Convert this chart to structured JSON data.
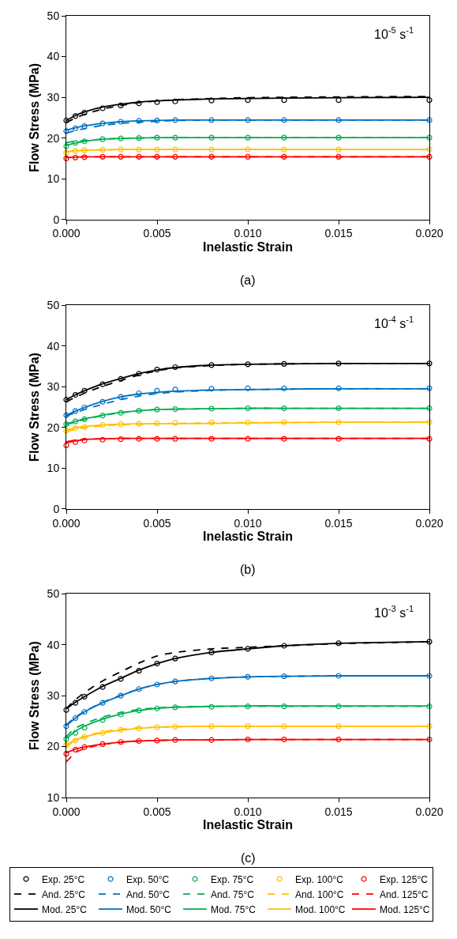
{
  "chart_data": [
    {
      "type": "line",
      "xlabel": "Inelastic Strain",
      "ylabel": "Flow Stress (MPa)",
      "annotations": [
        "10$^{-5}$ s$^{-1}$",
        "(a)"
      ],
      "legend": "bottom",
      "x": [
        0,
        0.0005,
        0.001,
        0.002,
        0.003,
        0.004,
        0.005,
        0.006,
        0.008,
        0.01,
        0.012,
        0.015,
        0.02
      ],
      "xlim": [
        0,
        0.02
      ],
      "xticks": [
        {
          "value": 0,
          "label": "0.000"
        },
        {
          "value": 0.005,
          "label": "0.005"
        },
        {
          "value": 0.01,
          "label": "0.010"
        },
        {
          "value": 0.015,
          "label": "0.015"
        },
        {
          "value": 0.02,
          "label": "0.020"
        }
      ],
      "ylim": [
        0,
        50
      ],
      "yticks": [
        0,
        10,
        20,
        30,
        40,
        50
      ],
      "series": [
        {
          "name": "Exp. 25°C",
          "type": "scatter",
          "marker": "circle",
          "color": "#000000",
          "values": [
            24.3,
            25.4,
            26.2,
            27.3,
            28.0,
            28.5,
            28.8,
            29.0,
            29.2,
            29.3,
            29.3,
            29.3,
            29.3
          ]
        },
        {
          "name": "Exp. 50°C",
          "type": "scatter",
          "marker": "circle",
          "color": "#0070c0",
          "values": [
            21.7,
            22.4,
            22.9,
            23.6,
            24.0,
            24.2,
            24.3,
            24.4,
            24.4,
            24.4,
            24.4,
            24.4,
            24.4
          ]
        },
        {
          "name": "Exp. 75°C",
          "type": "scatter",
          "marker": "circle",
          "color": "#00b050",
          "values": [
            18.0,
            18.8,
            19.2,
            19.7,
            19.9,
            20.0,
            20.1,
            20.1,
            20.1,
            20.1,
            20.1,
            20.1,
            20.1
          ]
        },
        {
          "name": "Exp. 100°C",
          "type": "scatter",
          "marker": "circle",
          "color": "#ffc000",
          "values": [
            16.4,
            16.8,
            17.0,
            17.1,
            17.2,
            17.2,
            17.2,
            17.2,
            17.2,
            17.2,
            17.2,
            17.2,
            17.2
          ]
        },
        {
          "name": "Exp. 125°C",
          "type": "scatter",
          "marker": "circle",
          "color": "#ff0000",
          "values": [
            15.0,
            15.2,
            15.3,
            15.4,
            15.4,
            15.4,
            15.4,
            15.4,
            15.4,
            15.4,
            15.4,
            15.4,
            15.4
          ]
        },
        {
          "name": "Mod. 25°C",
          "type": "line",
          "line_style": "solid",
          "color": "#000000",
          "values": [
            24.3,
            25.5,
            26.4,
            27.6,
            28.3,
            28.8,
            29.1,
            29.3,
            29.6,
            29.7,
            29.8,
            29.9,
            30.0
          ]
        },
        {
          "name": "Mod. 50°C",
          "type": "line",
          "line_style": "solid",
          "color": "#0070c0",
          "values": [
            21.9,
            22.5,
            23.0,
            23.6,
            24.0,
            24.2,
            24.3,
            24.4,
            24.4,
            24.4,
            24.4,
            24.4,
            24.4
          ]
        },
        {
          "name": "Mod. 75°C",
          "type": "line",
          "line_style": "solid",
          "color": "#00b050",
          "values": [
            18.2,
            18.8,
            19.2,
            19.7,
            19.9,
            20.0,
            20.1,
            20.1,
            20.1,
            20.1,
            20.1,
            20.1,
            20.1
          ]
        },
        {
          "name": "Mod. 100°C",
          "type": "line",
          "line_style": "solid",
          "color": "#ffc000",
          "values": [
            16.6,
            16.9,
            17.0,
            17.1,
            17.2,
            17.2,
            17.2,
            17.2,
            17.2,
            17.2,
            17.2,
            17.2,
            17.2
          ]
        },
        {
          "name": "Mod. 125°C",
          "type": "line",
          "line_style": "solid",
          "color": "#ff0000",
          "values": [
            15.2,
            15.3,
            15.4,
            15.4,
            15.4,
            15.4,
            15.4,
            15.4,
            15.4,
            15.4,
            15.4,
            15.4,
            15.4
          ]
        },
        {
          "name": "And. 25°C",
          "type": "line",
          "line_style": "dashed",
          "color": "#000000",
          "values": [
            23.8,
            24.9,
            25.8,
            27.1,
            28.0,
            28.7,
            29.1,
            29.4,
            29.7,
            29.9,
            30.0,
            30.1,
            30.2
          ]
        },
        {
          "name": "And. 50°C",
          "type": "line",
          "line_style": "dashed",
          "color": "#0070c0",
          "values": [
            21.2,
            21.8,
            22.3,
            23.1,
            23.6,
            23.9,
            24.1,
            24.3,
            24.4,
            24.4,
            24.4,
            24.4,
            24.4
          ]
        },
        {
          "name": "And. 75°C",
          "type": "line",
          "line_style": "dashed",
          "color": "#00b050",
          "values": [
            18.9,
            19.2,
            19.4,
            19.7,
            19.9,
            20.0,
            20.1,
            20.1,
            20.1,
            20.1,
            20.1,
            20.1,
            20.1
          ]
        },
        {
          "name": "And. 100°C",
          "type": "line",
          "line_style": "dashed",
          "color": "#ffc000",
          "values": [
            16.6,
            16.9,
            17.0,
            17.1,
            17.2,
            17.2,
            17.2,
            17.2,
            17.2,
            17.2,
            17.2,
            17.2,
            17.2
          ]
        },
        {
          "name": "And. 125°C",
          "type": "line",
          "line_style": "dashed",
          "color": "#ff0000",
          "values": [
            15.2,
            15.3,
            15.4,
            15.4,
            15.4,
            15.4,
            15.4,
            15.4,
            15.4,
            15.4,
            15.4,
            15.4,
            15.4
          ]
        }
      ]
    },
    {
      "type": "line",
      "xlabel": "Inelastic Strain",
      "ylabel": "Flow Stress (MPa)",
      "annotations": [
        "10$^{-4}$ s$^{-1}$",
        "(b)"
      ],
      "x": [
        0,
        0.0005,
        0.001,
        0.002,
        0.003,
        0.004,
        0.005,
        0.006,
        0.008,
        0.01,
        0.012,
        0.015,
        0.02
      ],
      "xlim": [
        0,
        0.02
      ],
      "xticks": [
        {
          "value": 0,
          "label": "0.000"
        },
        {
          "value": 0.005,
          "label": "0.005"
        },
        {
          "value": 0.01,
          "label": "0.010"
        },
        {
          "value": 0.015,
          "label": "0.015"
        },
        {
          "value": 0.02,
          "label": "0.020"
        }
      ],
      "ylim": [
        0,
        50
      ],
      "yticks": [
        0,
        10,
        20,
        30,
        40,
        50
      ],
      "series": [
        {
          "type": "scatter",
          "marker": "circle",
          "color": "#000000",
          "values": [
            26.8,
            28.0,
            29.0,
            30.6,
            31.9,
            33.2,
            34.2,
            34.8,
            35.3,
            35.5,
            35.6,
            35.7,
            35.7
          ]
        },
        {
          "type": "scatter",
          "marker": "circle",
          "color": "#0070c0",
          "values": [
            23.0,
            24.0,
            24.9,
            26.3,
            27.5,
            28.4,
            29.0,
            29.3,
            29.5,
            29.6,
            29.6,
            29.6,
            29.6
          ]
        },
        {
          "type": "scatter",
          "marker": "circle",
          "color": "#00b050",
          "values": [
            20.8,
            21.5,
            22.0,
            22.9,
            23.6,
            24.1,
            24.4,
            24.5,
            24.6,
            24.7,
            24.7,
            24.7,
            24.7
          ]
        },
        {
          "type": "scatter",
          "marker": "circle",
          "color": "#ffc000",
          "values": [
            19.2,
            19.8,
            20.1,
            20.6,
            20.8,
            20.9,
            21.0,
            21.1,
            21.2,
            21.2,
            21.3,
            21.3,
            21.3
          ]
        },
        {
          "type": "scatter",
          "marker": "circle",
          "color": "#ff0000",
          "values": [
            15.6,
            16.4,
            16.8,
            17.0,
            17.1,
            17.2,
            17.2,
            17.2,
            17.2,
            17.2,
            17.2,
            17.2,
            17.2
          ]
        },
        {
          "type": "line",
          "line_style": "solid",
          "color": "#000000",
          "values": [
            26.8,
            28.0,
            29.0,
            30.7,
            32.0,
            33.2,
            34.1,
            34.7,
            35.3,
            35.5,
            35.6,
            35.7,
            35.7
          ]
        },
        {
          "type": "line",
          "line_style": "solid",
          "color": "#0070c0",
          "values": [
            23.0,
            24.0,
            24.9,
            26.4,
            27.5,
            28.2,
            28.6,
            28.9,
            29.2,
            29.3,
            29.4,
            29.5,
            29.5
          ]
        },
        {
          "type": "line",
          "line_style": "solid",
          "color": "#00b050",
          "values": [
            20.9,
            21.5,
            22.1,
            23.0,
            23.7,
            24.1,
            24.4,
            24.5,
            24.6,
            24.7,
            24.7,
            24.7,
            24.7
          ]
        },
        {
          "type": "line",
          "line_style": "solid",
          "color": "#ffc000",
          "values": [
            19.4,
            19.9,
            20.2,
            20.6,
            20.8,
            20.9,
            20.9,
            20.9,
            21.0,
            21.1,
            21.2,
            21.3,
            21.3
          ]
        },
        {
          "type": "line",
          "line_style": "solid",
          "color": "#ff0000",
          "values": [
            16.2,
            16.7,
            17.0,
            17.2,
            17.3,
            17.3,
            17.3,
            17.3,
            17.3,
            17.3,
            17.3,
            17.3,
            17.3
          ]
        },
        {
          "type": "line",
          "line_style": "dashed",
          "color": "#000000",
          "values": [
            26.3,
            27.4,
            28.4,
            30.1,
            31.5,
            32.9,
            33.9,
            34.6,
            35.2,
            35.5,
            35.6,
            35.7,
            35.7
          ]
        },
        {
          "type": "line",
          "line_style": "dashed",
          "color": "#0070c0",
          "values": [
            22.8,
            23.6,
            24.4,
            25.7,
            26.8,
            27.7,
            28.3,
            28.7,
            29.1,
            29.3,
            29.4,
            29.5,
            29.5
          ]
        },
        {
          "type": "line",
          "line_style": "dashed",
          "color": "#00b050",
          "values": [
            20.7,
            21.3,
            21.9,
            22.9,
            23.6,
            24.1,
            24.4,
            24.5,
            24.6,
            24.7,
            24.7,
            24.7,
            24.7
          ]
        },
        {
          "type": "line",
          "line_style": "dashed",
          "color": "#ffc000",
          "values": [
            19.0,
            19.5,
            19.9,
            20.4,
            20.6,
            20.8,
            20.9,
            21.0,
            21.1,
            21.2,
            21.2,
            21.3,
            21.3
          ]
        },
        {
          "type": "line",
          "line_style": "dashed",
          "color": "#ff0000",
          "values": [
            16.5,
            16.9,
            17.1,
            17.2,
            17.3,
            17.3,
            17.3,
            17.3,
            17.3,
            17.3,
            17.3,
            17.3,
            17.3
          ]
        }
      ]
    },
    {
      "type": "line",
      "xlabel": "Inelastic Strain",
      "ylabel": "Flow Stress (MPa)",
      "annotations": [
        "10$^{-3}$ s$^{-1}$",
        "(c)"
      ],
      "x": [
        0,
        0.0005,
        0.001,
        0.002,
        0.003,
        0.004,
        0.005,
        0.006,
        0.008,
        0.01,
        0.012,
        0.015,
        0.02
      ],
      "xlim": [
        0,
        0.02
      ],
      "xticks": [
        {
          "value": 0,
          "label": "0.000"
        },
        {
          "value": 0.005,
          "label": "0.005"
        },
        {
          "value": 0.01,
          "label": "0.010"
        },
        {
          "value": 0.015,
          "label": "0.015"
        },
        {
          "value": 0.02,
          "label": "0.020"
        }
      ],
      "ylim": [
        10,
        50
      ],
      "yticks": [
        10,
        20,
        30,
        40,
        50
      ],
      "series": [
        {
          "type": "scatter",
          "marker": "circle",
          "color": "#000000",
          "values": [
            27.2,
            28.6,
            29.8,
            31.7,
            33.3,
            34.9,
            36.3,
            37.3,
            38.5,
            39.2,
            39.8,
            40.3,
            40.6
          ]
        },
        {
          "type": "scatter",
          "marker": "circle",
          "color": "#0070c0",
          "values": [
            24.0,
            25.6,
            26.8,
            28.6,
            30.0,
            31.3,
            32.2,
            32.8,
            33.4,
            33.7,
            33.8,
            33.9,
            33.9
          ]
        },
        {
          "type": "scatter",
          "marker": "circle",
          "color": "#00b050",
          "values": [
            21.5,
            22.7,
            23.7,
            25.2,
            26.3,
            27.1,
            27.5,
            27.7,
            27.8,
            27.9,
            27.9,
            27.9,
            27.9
          ]
        },
        {
          "type": "scatter",
          "marker": "circle",
          "color": "#ffc000",
          "values": [
            20.3,
            21.2,
            21.9,
            22.7,
            23.3,
            23.6,
            23.8,
            23.9,
            24.0,
            24.0,
            24.0,
            24.0,
            24.0
          ]
        },
        {
          "type": "scatter",
          "marker": "circle",
          "color": "#ff0000",
          "values": [
            18.6,
            19.4,
            19.9,
            20.5,
            20.9,
            21.1,
            21.2,
            21.3,
            21.3,
            21.4,
            21.4,
            21.4,
            21.4
          ]
        },
        {
          "type": "line",
          "line_style": "solid",
          "color": "#000000",
          "values": [
            27.4,
            28.7,
            29.8,
            31.8,
            33.4,
            35.0,
            36.3,
            37.3,
            38.5,
            39.2,
            39.8,
            40.3,
            40.6
          ]
        },
        {
          "type": "line",
          "line_style": "solid",
          "color": "#0070c0",
          "values": [
            24.1,
            25.6,
            26.8,
            28.6,
            30.0,
            31.3,
            32.2,
            32.8,
            33.4,
            33.7,
            33.8,
            33.9,
            33.9
          ]
        },
        {
          "type": "line",
          "line_style": "solid",
          "color": "#00b050",
          "values": [
            21.6,
            23.0,
            24.0,
            25.4,
            26.4,
            27.1,
            27.5,
            27.7,
            27.9,
            28.0,
            28.0,
            28.0,
            28.0
          ]
        },
        {
          "type": "line",
          "line_style": "solid",
          "color": "#ffc000",
          "values": [
            20.4,
            21.3,
            21.9,
            22.7,
            23.2,
            23.6,
            23.8,
            23.9,
            24.0,
            24.0,
            24.0,
            24.0,
            24.0
          ]
        },
        {
          "type": "line",
          "line_style": "solid",
          "color": "#ff0000",
          "values": [
            18.8,
            19.5,
            19.9,
            20.5,
            20.9,
            21.1,
            21.2,
            21.3,
            21.3,
            21.4,
            21.4,
            21.4,
            21.4
          ]
        },
        {
          "type": "line",
          "line_style": "dashed",
          "color": "#000000",
          "values": [
            27.5,
            29.2,
            30.6,
            32.9,
            34.7,
            36.4,
            37.8,
            38.5,
            39.2,
            39.5,
            39.8,
            40.2,
            40.6
          ]
        },
        {
          "type": "line",
          "line_style": "dashed",
          "color": "#0070c0",
          "values": [
            24.3,
            25.8,
            26.9,
            28.7,
            30.1,
            31.3,
            32.2,
            32.8,
            33.4,
            33.7,
            33.8,
            33.9,
            33.9
          ]
        },
        {
          "type": "line",
          "line_style": "dashed",
          "color": "#00b050",
          "values": [
            22.0,
            23.6,
            24.5,
            25.8,
            26.7,
            27.3,
            27.6,
            27.8,
            27.9,
            27.9,
            27.9,
            27.9,
            27.9
          ]
        },
        {
          "type": "line",
          "line_style": "dashed",
          "color": "#ffc000",
          "values": [
            20.0,
            21.2,
            22.0,
            22.9,
            23.4,
            23.7,
            23.8,
            23.9,
            24.0,
            24.0,
            24.0,
            24.0,
            24.0
          ]
        },
        {
          "type": "line",
          "line_style": "dashed",
          "color": "#ff0000",
          "values": [
            17.0,
            18.8,
            19.6,
            20.4,
            20.8,
            21.1,
            21.2,
            21.3,
            21.3,
            21.4,
            21.4,
            21.4,
            21.4
          ]
        }
      ]
    }
  ]
}
